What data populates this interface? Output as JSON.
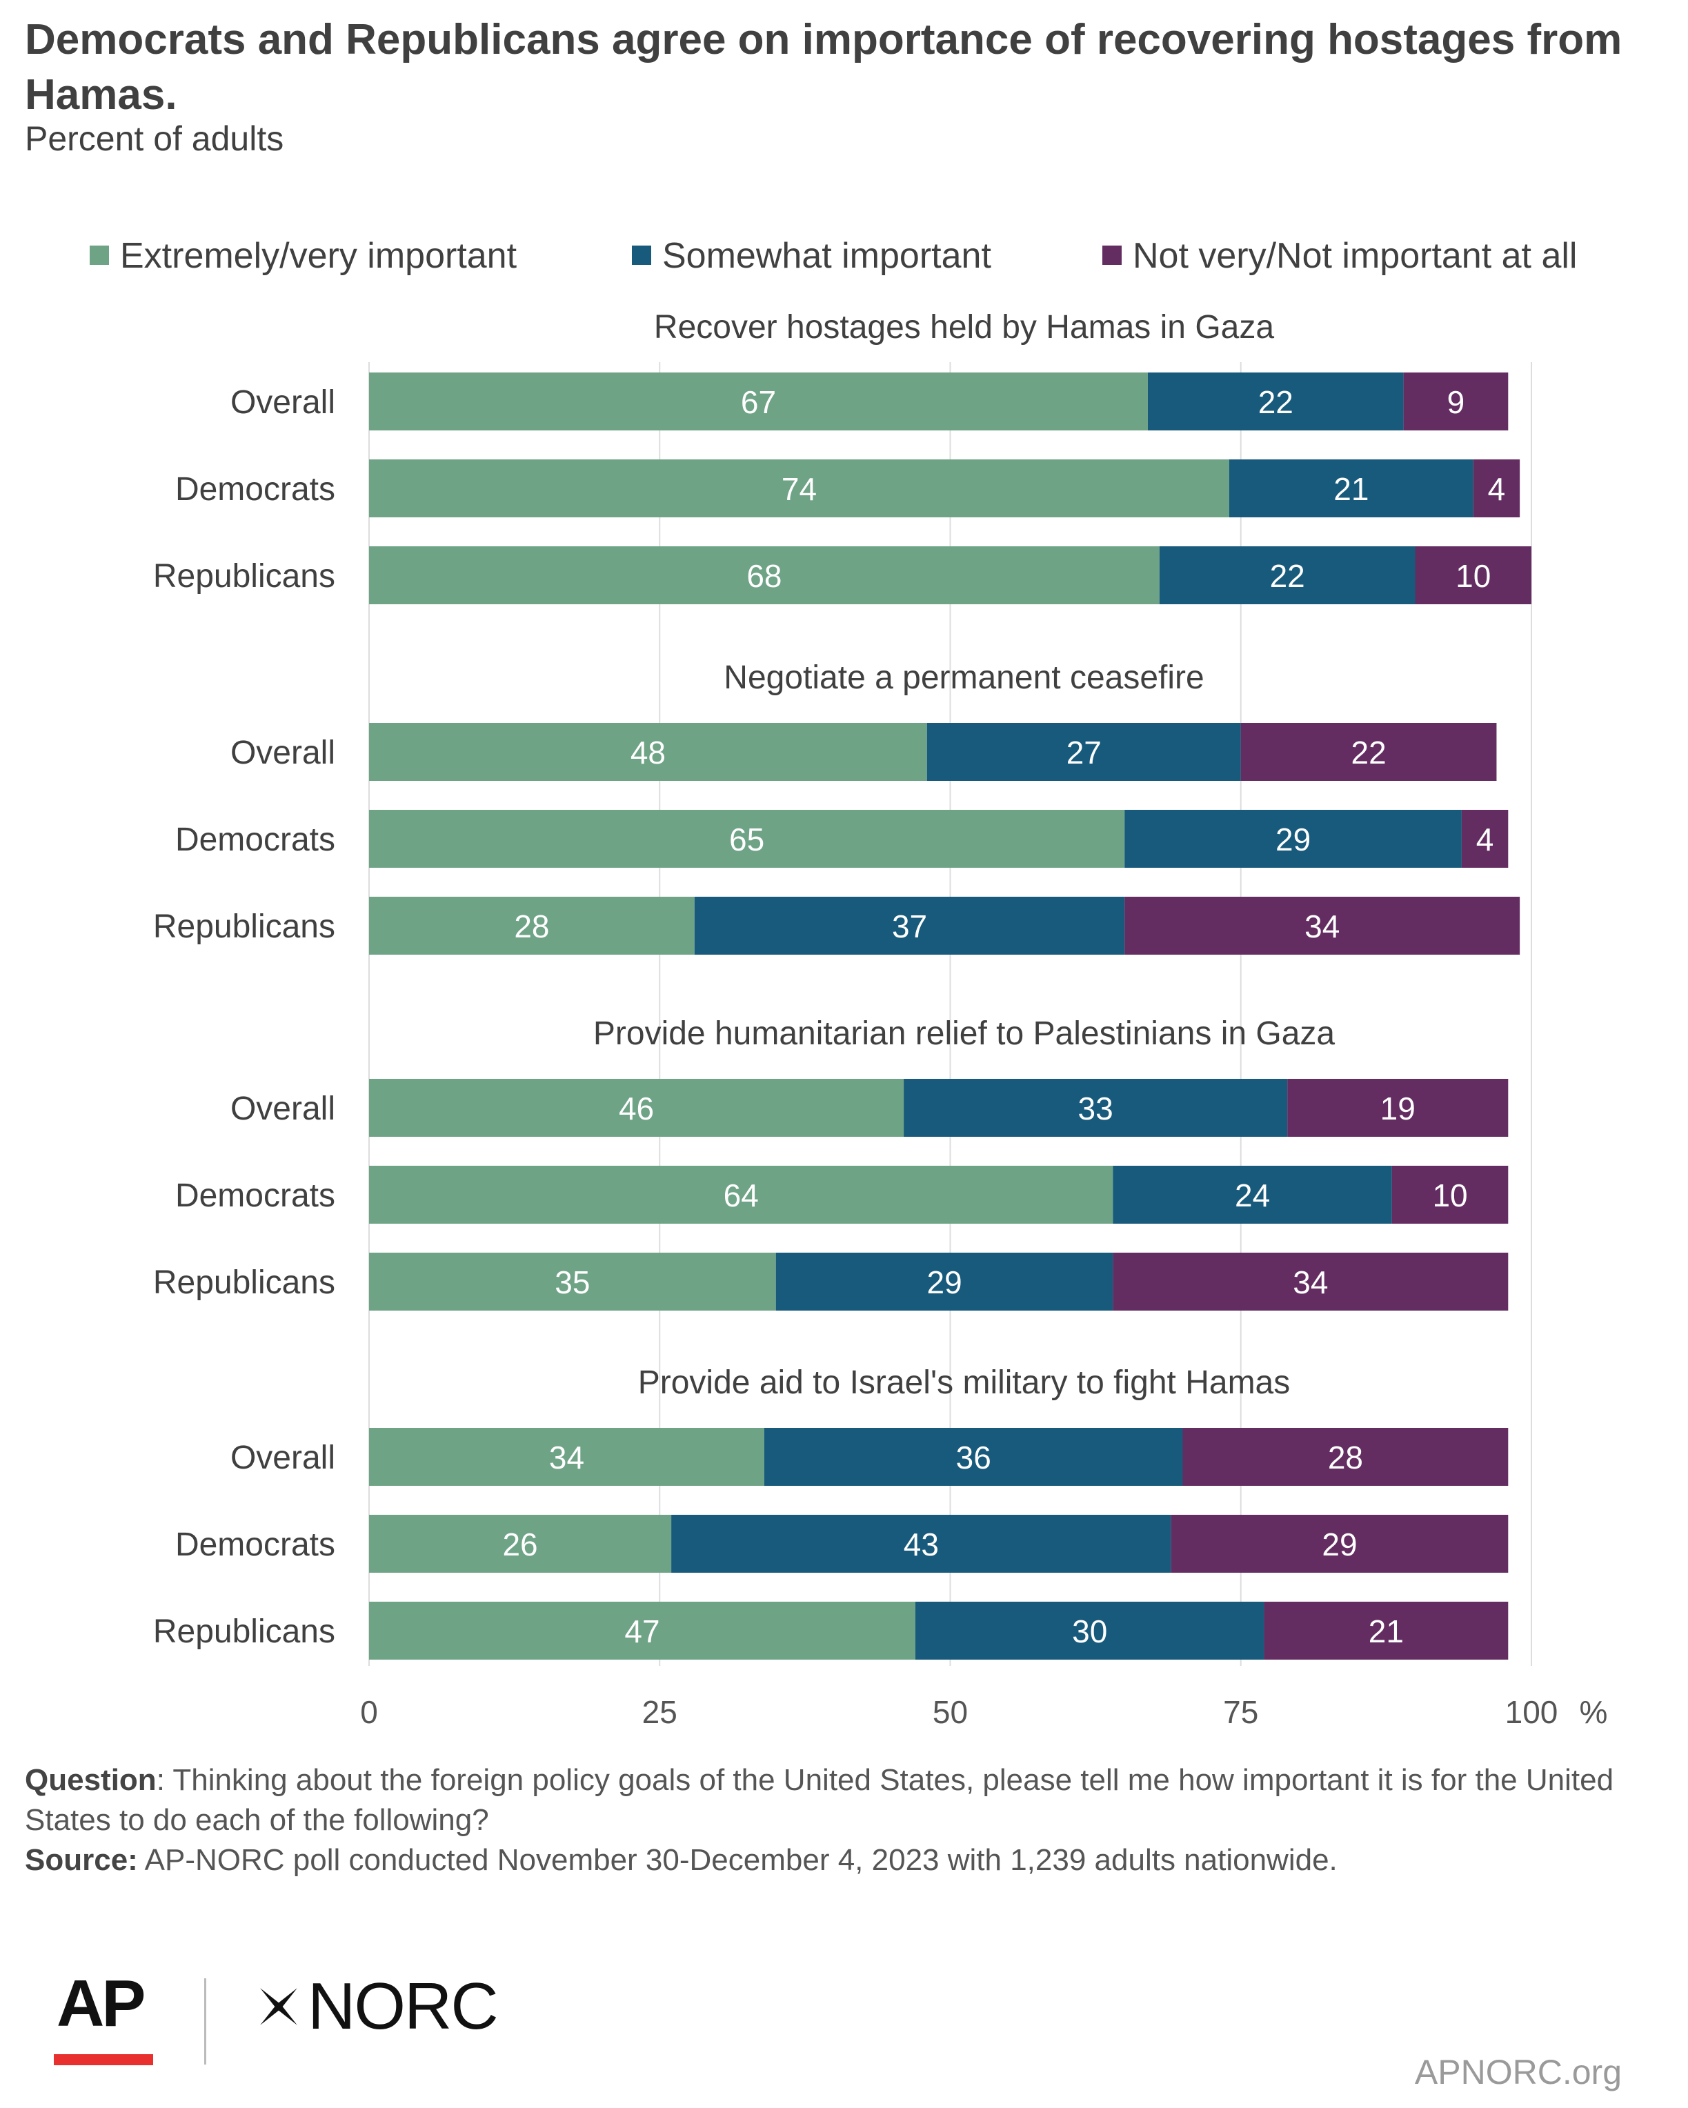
{
  "header": {
    "title": "Democrats and Republicans agree on importance of recovering hostages from Hamas.",
    "subtitle": "Percent of adults"
  },
  "legend": [
    {
      "label": "Extremely/very important",
      "color": "#6ea386"
    },
    {
      "label": "Somewhat important",
      "color": "#175a7b"
    },
    {
      "label": "Not very/Not important at all",
      "color": "#642d62"
    }
  ],
  "chart_data": {
    "type": "bar",
    "orientation": "horizontal",
    "stacked": true,
    "xlim": [
      0,
      100
    ],
    "xticks": [
      "0",
      "25",
      "50",
      "75",
      "100"
    ],
    "xunit": "%",
    "grid": true,
    "legend_position": "top",
    "groups": [
      {
        "title": "Recover hostages held by Hamas in Gaza",
        "rows": [
          {
            "label": "Overall",
            "values": [
              67,
              22,
              9
            ]
          },
          {
            "label": "Democrats",
            "values": [
              74,
              21,
              4
            ]
          },
          {
            "label": "Republicans",
            "values": [
              68,
              22,
              10
            ]
          }
        ]
      },
      {
        "title": "Negotiate a permanent ceasefire",
        "rows": [
          {
            "label": "Overall",
            "values": [
              48,
              27,
              22
            ]
          },
          {
            "label": "Democrats",
            "values": [
              65,
              29,
              4
            ]
          },
          {
            "label": "Republicans",
            "values": [
              28,
              37,
              34
            ]
          }
        ]
      },
      {
        "title": "Provide humanitarian relief to Palestinians in Gaza",
        "rows": [
          {
            "label": "Overall",
            "values": [
              46,
              33,
              19
            ]
          },
          {
            "label": "Democrats",
            "values": [
              64,
              24,
              10
            ]
          },
          {
            "label": "Republicans",
            "values": [
              35,
              29,
              34
            ]
          }
        ]
      },
      {
        "title": "Provide aid to Israel's military to fight Hamas",
        "rows": [
          {
            "label": "Overall",
            "values": [
              34,
              36,
              28
            ]
          },
          {
            "label": "Democrats",
            "values": [
              26,
              43,
              29
            ]
          },
          {
            "label": "Republicans",
            "values": [
              47,
              30,
              21
            ]
          }
        ]
      }
    ]
  },
  "footer": {
    "question_label": "Question",
    "question_text": ": Thinking about the foreign policy goals of the United States, please tell me how important it is for the United States to do each of the following?",
    "source_label": "Source:",
    "source_text": " AP-NORC poll conducted November 30-December 4, 2023 with 1,239 adults nationwide.",
    "ap_logo": "AP",
    "norc_logo": "NORC",
    "website": "APNORC.org"
  }
}
